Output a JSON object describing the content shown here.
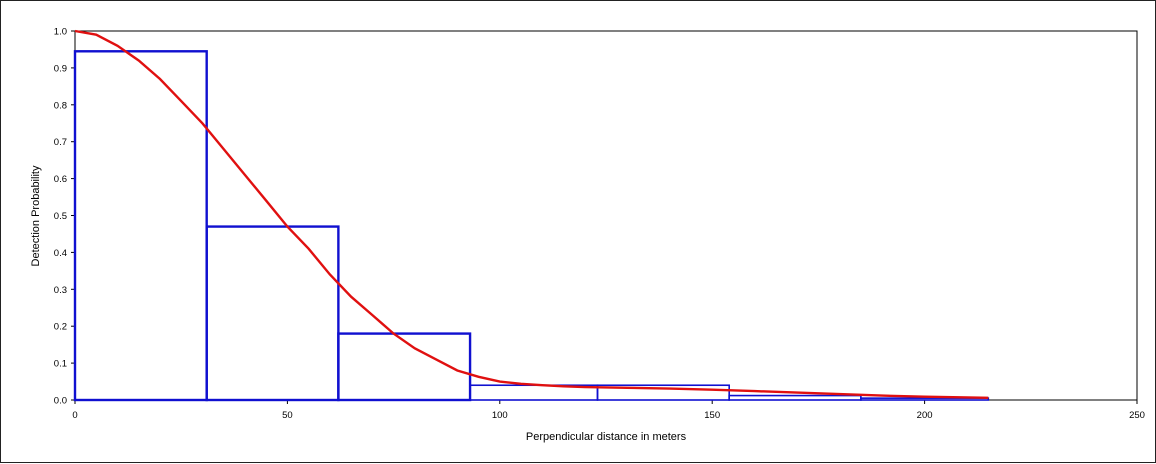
{
  "chart_data": {
    "type": "bar",
    "xlabel": "Perpendicular distance in meters",
    "ylabel": "Detection Probability",
    "xlim": [
      0,
      250
    ],
    "ylim": [
      0,
      1.0
    ],
    "x_ticks": [
      "0",
      "50",
      "100",
      "150",
      "200",
      "250"
    ],
    "y_ticks": [
      "0.0",
      "0.1",
      "0.2",
      "0.3",
      "0.4",
      "0.5",
      "0.6",
      "0.7",
      "0.8",
      "0.9",
      "1.0"
    ],
    "grid": false,
    "colors": {
      "histogram": "#1010d0",
      "curve": "#e01010",
      "axis": "#000000"
    },
    "histogram": {
      "name": "",
      "bins": [
        {
          "x0": 0,
          "x1": 31,
          "value": 0.945
        },
        {
          "x0": 31,
          "x1": 62,
          "value": 0.47
        },
        {
          "x0": 62,
          "x1": 93,
          "value": 0.18
        },
        {
          "x0": 93,
          "x1": 123,
          "value": 0.04
        },
        {
          "x0": 123,
          "x1": 154,
          "value": 0.04
        },
        {
          "x0": 154,
          "x1": 185,
          "value": 0.012
        },
        {
          "x0": 185,
          "x1": 215,
          "value": 0.005
        }
      ]
    },
    "curve": {
      "name": "",
      "x": [
        0,
        5,
        10,
        15,
        20,
        25,
        30,
        35,
        40,
        45,
        50,
        55,
        60,
        65,
        70,
        75,
        80,
        85,
        90,
        95,
        100,
        105,
        110,
        115,
        120,
        130,
        140,
        150,
        160,
        170,
        180,
        190,
        200,
        210,
        215
      ],
      "y": [
        1.0,
        0.99,
        0.96,
        0.92,
        0.87,
        0.81,
        0.75,
        0.68,
        0.61,
        0.54,
        0.47,
        0.41,
        0.34,
        0.28,
        0.23,
        0.18,
        0.14,
        0.11,
        0.08,
        0.063,
        0.05,
        0.044,
        0.04,
        0.037,
        0.035,
        0.033,
        0.031,
        0.028,
        0.024,
        0.02,
        0.016,
        0.012,
        0.009,
        0.007,
        0.006
      ]
    }
  }
}
